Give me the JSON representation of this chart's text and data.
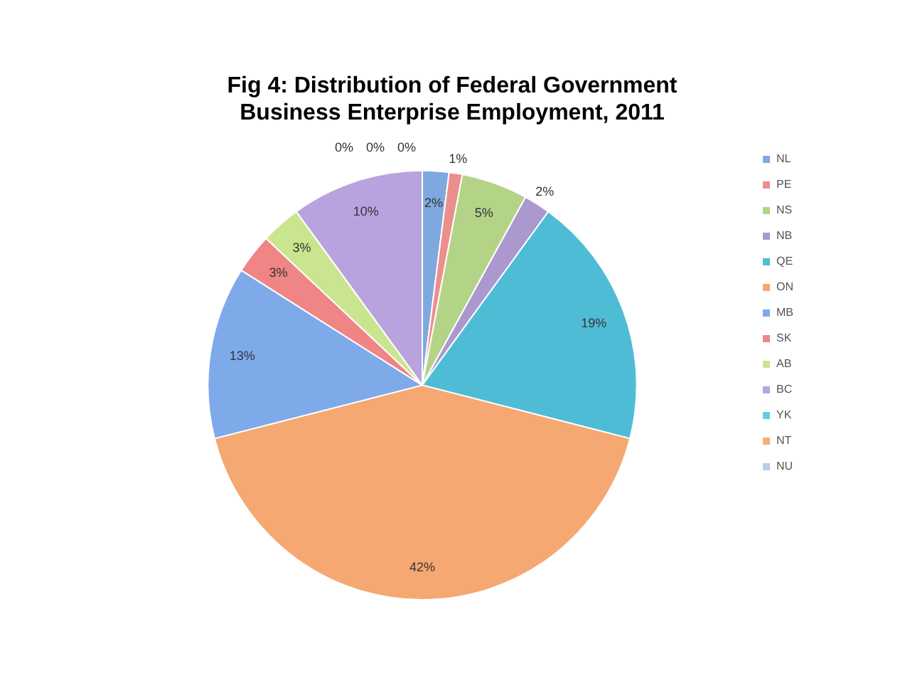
{
  "chart_data": {
    "type": "pie",
    "title": "Fig 4: Distribution of Federal Government Business Enterprise Employment, 2011",
    "categories": [
      "NL",
      "PE",
      "NS",
      "NB",
      "QE",
      "ON",
      "MB",
      "SK",
      "AB",
      "BC",
      "YK",
      "NT",
      "NU"
    ],
    "values": [
      2,
      1,
      5,
      2,
      19,
      42,
      13,
      3,
      3,
      10,
      0,
      0,
      0
    ],
    "colors": [
      "#7fa9de",
      "#ec8e8c",
      "#b3d487",
      "#ab98cf",
      "#4fbcd6",
      "#f5a872",
      "#7eaaea",
      "#ef8584",
      "#c9e58f",
      "#b9a3de",
      "#62cde6",
      "#f8ad78",
      "#bccbee"
    ],
    "value_labels": [
      "2%",
      "1%",
      "5%",
      "2%",
      "19%",
      "42%",
      "13%",
      "3%",
      "3%",
      "10%",
      "0%",
      "0%",
      "0%"
    ],
    "legend": "right"
  }
}
